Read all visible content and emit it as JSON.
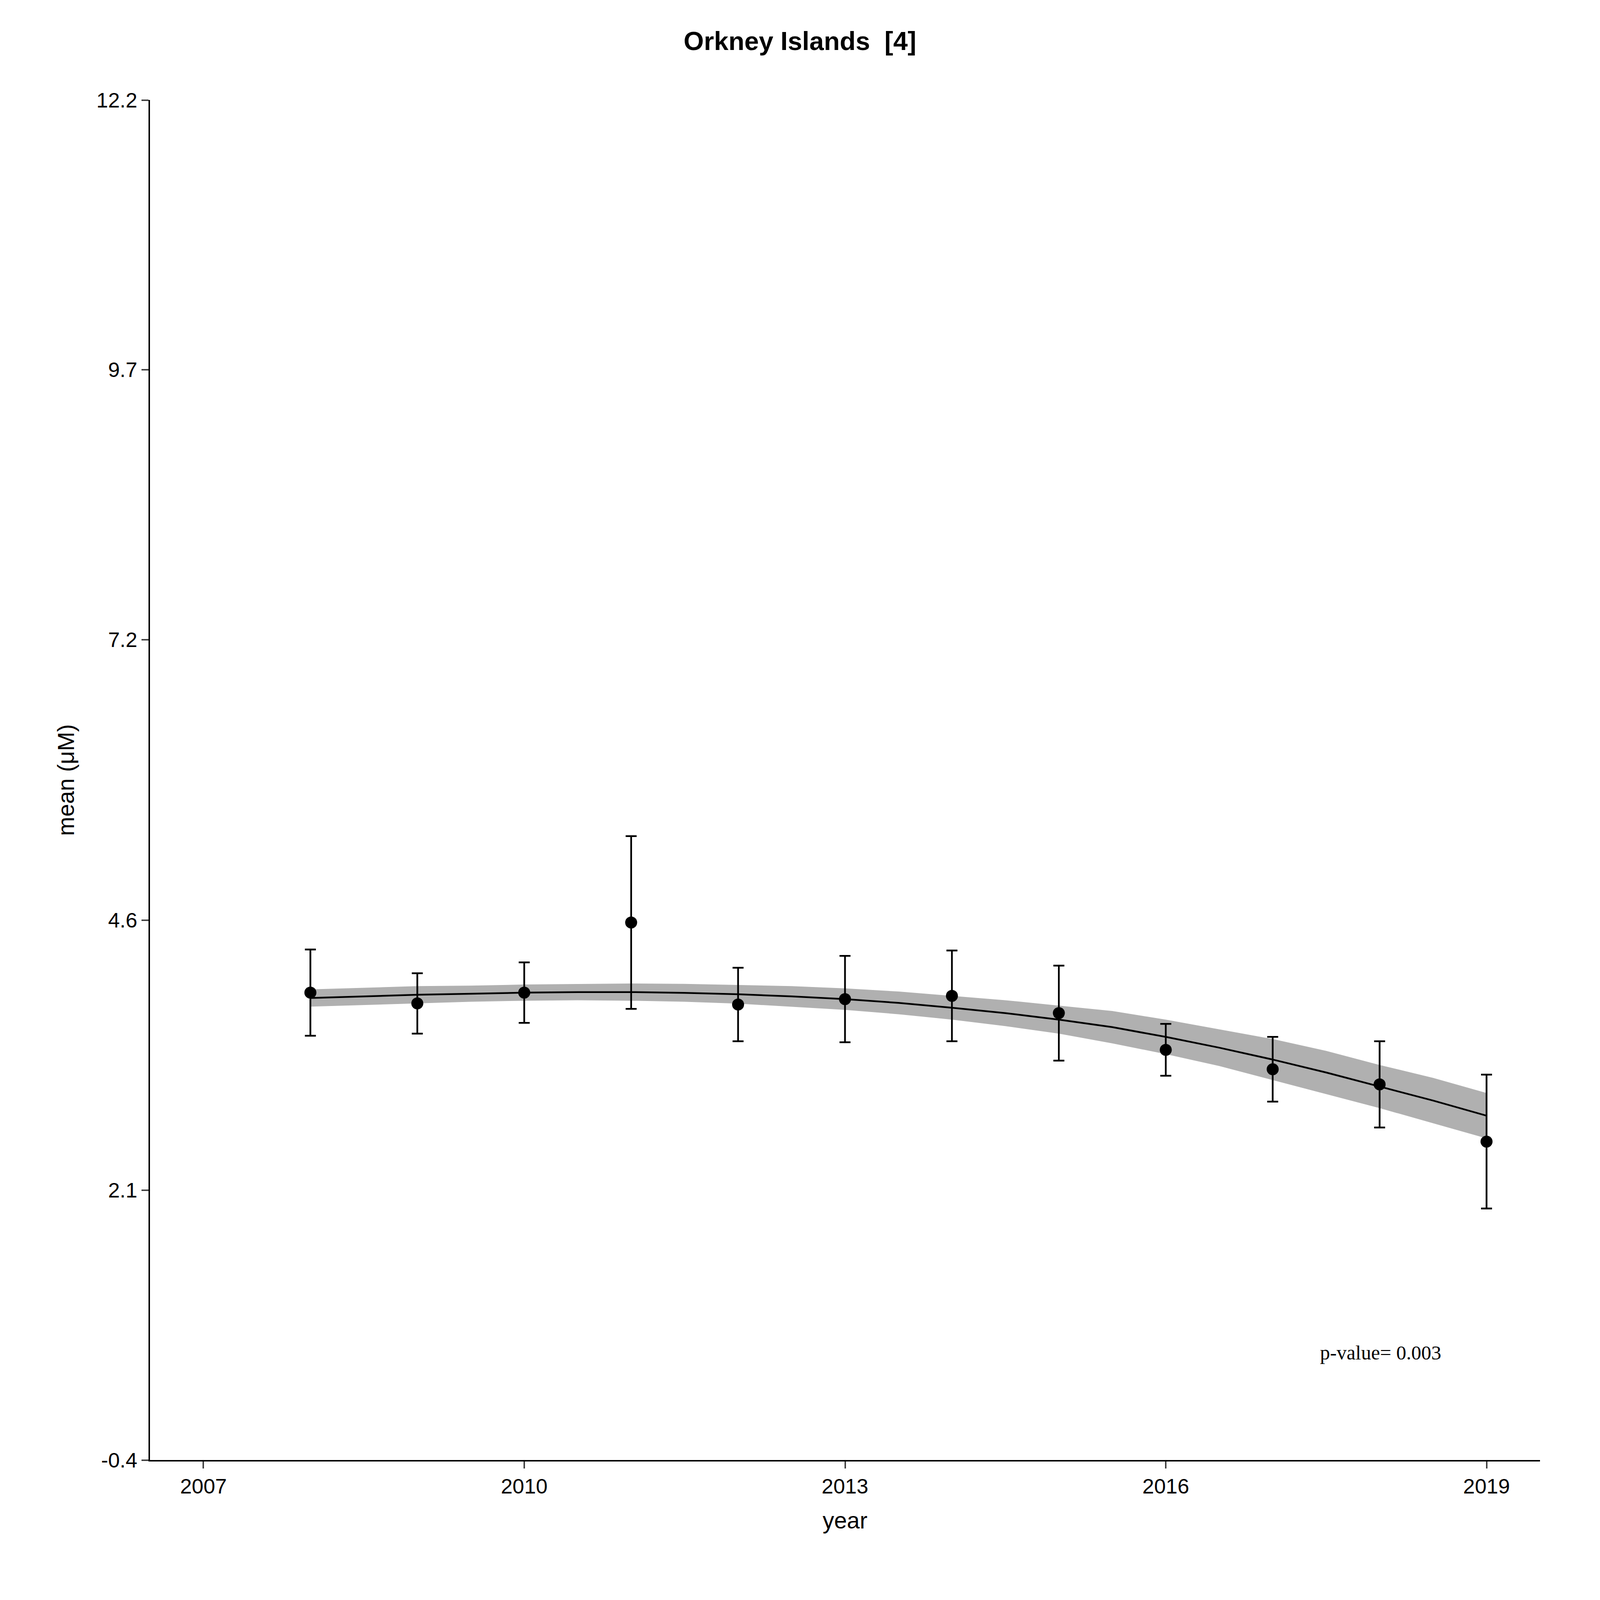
{
  "chart_data": {
    "type": "scatter",
    "title": "Orkney Islands  [4]",
    "xlabel": "year",
    "ylabel": "mean (μM)",
    "xlim": [
      2006.5,
      2019.5
    ],
    "xticks": [
      2007,
      2010,
      2013,
      2016,
      2019
    ],
    "ylim": [
      -0.4,
      12.2
    ],
    "yticks": [
      -0.4,
      2.1,
      4.6,
      7.2,
      9.7,
      12.2
    ],
    "grid": false,
    "annotations": [
      "p-value= 0.003"
    ],
    "series": [
      {
        "type": "band",
        "color": "#b0b0b0",
        "x": [
          2008,
          2008.5,
          2009,
          2009.5,
          2010,
          2010.5,
          2011,
          2011.5,
          2012,
          2012.5,
          2013,
          2013.5,
          2014,
          2014.5,
          2015,
          2015.5,
          2016,
          2016.5,
          2017,
          2017.5,
          2018,
          2018.5,
          2019
        ],
        "lower": [
          3.8,
          3.815,
          3.83,
          3.845,
          3.855,
          3.86,
          3.855,
          3.845,
          3.828,
          3.8,
          3.77,
          3.73,
          3.68,
          3.62,
          3.55,
          3.46,
          3.36,
          3.25,
          3.12,
          2.99,
          2.86,
          2.72,
          2.58
        ],
        "upper": [
          3.96,
          3.975,
          3.99,
          3.995,
          4.005,
          4.01,
          4.015,
          4.011,
          4.002,
          3.99,
          3.97,
          3.94,
          3.9,
          3.86,
          3.81,
          3.76,
          3.68,
          3.59,
          3.5,
          3.39,
          3.26,
          3.14,
          3.0
        ]
      },
      {
        "type": "line",
        "color": "#000000",
        "x": [
          2008,
          2008.5,
          2009,
          2009.5,
          2010,
          2010.5,
          2011,
          2011.5,
          2012,
          2012.5,
          2013,
          2013.5,
          2014,
          2014.5,
          2015,
          2015.5,
          2016,
          2016.5,
          2017,
          2017.5,
          2018,
          2018.5,
          2019
        ],
        "values": [
          3.88,
          3.895,
          3.91,
          3.92,
          3.93,
          3.935,
          3.935,
          3.928,
          3.915,
          3.895,
          3.87,
          3.835,
          3.79,
          3.74,
          3.68,
          3.61,
          3.52,
          3.42,
          3.31,
          3.19,
          3.06,
          2.93,
          2.79
        ]
      },
      {
        "type": "scatter",
        "color": "#000000",
        "marker": "circle",
        "x": [
          2008,
          2009,
          2010,
          2011,
          2012,
          2013,
          2014,
          2015,
          2016,
          2017,
          2018,
          2019
        ],
        "values": [
          3.93,
          3.83,
          3.93,
          4.58,
          3.82,
          3.87,
          3.9,
          3.74,
          3.4,
          3.22,
          3.08,
          2.55
        ],
        "error_low": [
          0.4,
          0.28,
          0.28,
          0.8,
          0.34,
          0.4,
          0.42,
          0.44,
          0.24,
          0.3,
          0.4,
          0.62
        ],
        "error_high": [
          0.4,
          0.28,
          0.28,
          0.8,
          0.34,
          0.4,
          0.42,
          0.44,
          0.24,
          0.3,
          0.4,
          0.62
        ]
      }
    ]
  }
}
